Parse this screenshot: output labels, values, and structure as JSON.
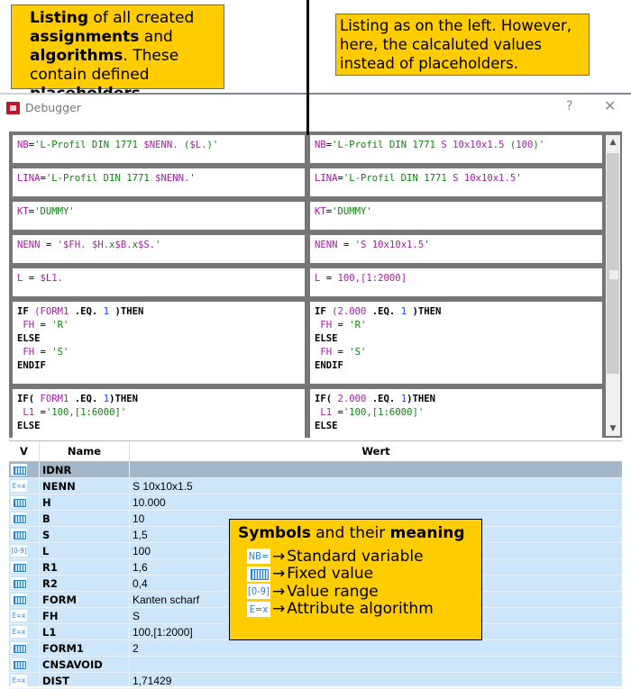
{
  "annotations": {
    "left": [
      [
        "Listing",
        true
      ],
      [
        " of all created ",
        false
      ],
      [
        "assignments",
        true
      ],
      [
        " and ",
        false
      ],
      [
        "algorithms",
        true
      ],
      [
        ". These contain defined ",
        false
      ],
      [
        "placeholders",
        true
      ],
      [
        ".",
        false
      ]
    ],
    "right": "Listing as on the left. However, here, the calcaluted values instead of placeholders."
  },
  "window": {
    "title": "Debugger",
    "help": "?",
    "close": "✕"
  },
  "code": {
    "left": [
      [
        [
          [
            "NB",
            "v"
          ],
          [
            "=",
            "p"
          ],
          [
            "'L-Profil DIN 1771 ",
            "s"
          ],
          [
            "$NENN.",
            "v"
          ],
          [
            " (",
            "s"
          ],
          [
            "$L.",
            "v"
          ],
          [
            ")'",
            "s"
          ]
        ]
      ],
      [
        [
          [
            "LINA",
            "v"
          ],
          [
            "=",
            "p"
          ],
          [
            "'L-Profil DIN 1771 ",
            "s"
          ],
          [
            "$NENN.",
            "v"
          ],
          [
            "'",
            "s"
          ]
        ]
      ],
      [
        [
          [
            "KT",
            "v"
          ],
          [
            "=",
            "p"
          ],
          [
            "'DUMMY'",
            "s"
          ]
        ]
      ],
      [
        [
          [
            "NENN",
            "v"
          ],
          [
            " = ",
            "p"
          ],
          [
            "'",
            "s"
          ],
          [
            "$FH.",
            "v"
          ],
          [
            " ",
            "s"
          ],
          [
            "$H.",
            "v"
          ],
          [
            "x",
            "s"
          ],
          [
            "$B.",
            "v"
          ],
          [
            "x",
            "s"
          ],
          [
            "$S.",
            "v"
          ],
          [
            "'",
            "s"
          ]
        ]
      ],
      [
        [
          [
            "L",
            "v"
          ],
          [
            " = ",
            "p"
          ],
          [
            "$L1.",
            "v"
          ]
        ]
      ],
      [
        [
          [
            "IF ",
            "k"
          ],
          [
            "(FORM1",
            "v"
          ],
          [
            " .EQ. ",
            "k"
          ],
          [
            "1",
            "n"
          ],
          [
            " )THEN",
            "k"
          ]
        ],
        [
          [
            " FH",
            "v"
          ],
          [
            " = ",
            "p"
          ],
          [
            "'R'",
            "s"
          ]
        ],
        [
          [
            "ELSE",
            "k"
          ]
        ],
        [
          [
            " FH",
            "v"
          ],
          [
            " = ",
            "p"
          ],
          [
            "'S'",
            "s"
          ]
        ],
        [
          [
            "ENDIF",
            "k"
          ]
        ]
      ],
      [
        [
          [
            "IF( ",
            "k"
          ],
          [
            "FORM1",
            "v"
          ],
          [
            " .EQ. ",
            "k"
          ],
          [
            "1",
            "n"
          ],
          [
            ")THEN",
            "k"
          ]
        ],
        [
          [
            " L1",
            "v"
          ],
          [
            " =",
            "p"
          ],
          [
            "'100,[1:6000]'",
            "s"
          ]
        ],
        [
          [
            "ELSE",
            "k"
          ]
        ]
      ]
    ],
    "right": [
      [
        [
          [
            "NB",
            "v"
          ],
          [
            "=",
            "p"
          ],
          [
            "'L-Profil DIN 1771 ",
            "s"
          ],
          [
            "S 10x10x1.5",
            "v"
          ],
          [
            " (",
            "s"
          ],
          [
            "100",
            "v"
          ],
          [
            ")'",
            "s"
          ]
        ]
      ],
      [
        [
          [
            "LINA",
            "v"
          ],
          [
            "=",
            "p"
          ],
          [
            "'L-Profil DIN 1771 ",
            "s"
          ],
          [
            "S 10x10x1.5",
            "v"
          ],
          [
            "'",
            "s"
          ]
        ]
      ],
      [
        [
          [
            "KT",
            "v"
          ],
          [
            "=",
            "p"
          ],
          [
            "'DUMMY'",
            "s"
          ]
        ]
      ],
      [
        [
          [
            "NENN",
            "v"
          ],
          [
            " = ",
            "p"
          ],
          [
            "'",
            "s"
          ],
          [
            "S 10x10x1.5",
            "v"
          ],
          [
            "'",
            "s"
          ]
        ]
      ],
      [
        [
          [
            "L",
            "v"
          ],
          [
            " = ",
            "p"
          ],
          [
            "100,[1:2000]",
            "v"
          ]
        ]
      ],
      [
        [
          [
            "IF ",
            "k"
          ],
          [
            "(2.000",
            "v"
          ],
          [
            " .EQ. ",
            "k"
          ],
          [
            "1",
            "n"
          ],
          [
            " )THEN",
            "k"
          ]
        ],
        [
          [
            " FH",
            "v"
          ],
          [
            " = ",
            "p"
          ],
          [
            "'R'",
            "s"
          ]
        ],
        [
          [
            "ELSE",
            "k"
          ]
        ],
        [
          [
            " FH",
            "v"
          ],
          [
            " = ",
            "p"
          ],
          [
            "'S'",
            "s"
          ]
        ],
        [
          [
            "ENDIF",
            "k"
          ]
        ]
      ],
      [
        [
          [
            "IF( ",
            "k"
          ],
          [
            "2.000",
            "v"
          ],
          [
            " .EQ. ",
            "k"
          ],
          [
            "1",
            "n"
          ],
          [
            ")THEN",
            "k"
          ]
        ],
        [
          [
            " L1",
            "v"
          ],
          [
            " =",
            "p"
          ],
          [
            "'100,[1:6000]'",
            "s"
          ]
        ],
        [
          [
            "ELSE",
            "k"
          ]
        ]
      ]
    ]
  },
  "table": {
    "headers": [
      "V",
      "Name",
      "Wert"
    ],
    "rows": [
      {
        "icon": "fixed",
        "name": "IDNR",
        "value": "",
        "selected": true
      },
      {
        "icon": "algo",
        "name": "NENN",
        "value": "S 10x10x1.5"
      },
      {
        "icon": "fixed",
        "name": "H",
        "value": "10.000"
      },
      {
        "icon": "fixed",
        "name": "B",
        "value": "10"
      },
      {
        "icon": "fixed",
        "name": "S",
        "value": "1,5"
      },
      {
        "icon": "range",
        "name": "L",
        "value": "100"
      },
      {
        "icon": "fixed",
        "name": "R1",
        "value": "1,6"
      },
      {
        "icon": "fixed",
        "name": "R2",
        "value": "0,4"
      },
      {
        "icon": "fixed",
        "name": "FORM",
        "value": "Kanten scharf"
      },
      {
        "icon": "algo",
        "name": "FH",
        "value": "S"
      },
      {
        "icon": "algo",
        "name": "L1",
        "value": "100,[1:2000]"
      },
      {
        "icon": "fixed",
        "name": "FORM1",
        "value": "2"
      },
      {
        "icon": "fixed",
        "name": "CNSAVOID",
        "value": ""
      },
      {
        "icon": "algo",
        "name": "DIST",
        "value": "1,71429"
      }
    ]
  },
  "icons": {
    "std": "NB=",
    "fixed": "",
    "range": "[0-9]",
    "algo": "E=x"
  },
  "legend": {
    "title_bold1": "Symbols",
    "title_mid": " and their ",
    "title_bold2": "meaning",
    "items": [
      {
        "icon": "std",
        "label": "Standard variable"
      },
      {
        "icon": "fixed",
        "label": "Fixed value"
      },
      {
        "icon": "range",
        "label": "Value range"
      },
      {
        "icon": "algo",
        "label": "Attribute algorithm"
      }
    ],
    "arrow": "→"
  },
  "colors": {
    "note": "#ffcc00",
    "variable": "#a020a0",
    "string": "#108010",
    "number": "#1a3cff",
    "table_bg": "#cde6fa",
    "selected_row": "#a2b8c8"
  }
}
